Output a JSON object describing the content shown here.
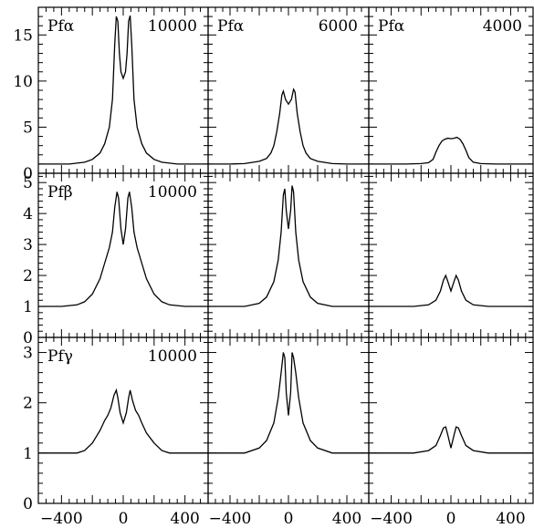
{
  "chart_data": {
    "type": "line",
    "rows": 3,
    "cols": 3,
    "xlim": [
      -550,
      550
    ],
    "xticks": [
      -400,
      0,
      400
    ],
    "xtick_labels": [
      "−400",
      "0",
      "400"
    ],
    "line_color": "#000000",
    "row_axes": [
      {
        "ylim": [
          0,
          18
        ],
        "yticks": [
          0,
          5,
          10,
          15
        ],
        "ytick_labels": [
          "0",
          "5",
          "10",
          "15"
        ],
        "minor_step": 1
      },
      {
        "ylim": [
          0,
          5.3
        ],
        "yticks": [
          0,
          1,
          2,
          3,
          4,
          5
        ],
        "ytick_labels": [
          "0",
          "1",
          "2",
          "3",
          "4",
          "5"
        ],
        "minor_step": 0.2
      },
      {
        "ylim": [
          0,
          3.3
        ],
        "yticks": [
          0,
          1,
          2,
          3
        ],
        "ytick_labels": [
          "0",
          "1",
          "2",
          "3"
        ],
        "minor_step": 0.2
      }
    ],
    "panels": [
      {
        "row": 0,
        "col": 0,
        "line": "Pfα",
        "value": "10000",
        "x": [
          -550,
          -450,
          -350,
          -300,
          -250,
          -200,
          -150,
          -120,
          -90,
          -70,
          -55,
          -45,
          -35,
          -25,
          -15,
          0,
          15,
          25,
          35,
          45,
          55,
          70,
          90,
          120,
          150,
          200,
          250,
          300,
          350,
          450,
          550
        ],
        "y": [
          1,
          1,
          1,
          1.1,
          1.2,
          1.5,
          2.2,
          3.2,
          5,
          8,
          14,
          17,
          16.5,
          13,
          11,
          10.3,
          11,
          13,
          16.5,
          17.1,
          14,
          8,
          5,
          3.2,
          2.2,
          1.5,
          1.2,
          1.1,
          1,
          1,
          1
        ]
      },
      {
        "row": 0,
        "col": 1,
        "line": "Pfα",
        "value": "6000",
        "x": [
          -550,
          -400,
          -300,
          -200,
          -150,
          -120,
          -100,
          -80,
          -60,
          -45,
          -35,
          -20,
          0,
          20,
          35,
          45,
          60,
          80,
          100,
          120,
          150,
          200,
          300,
          400,
          550
        ],
        "y": [
          1,
          1,
          1.05,
          1.3,
          1.6,
          2.2,
          3,
          4.5,
          6.5,
          8.5,
          8.9,
          8,
          7.5,
          8,
          9.1,
          8.8,
          6.5,
          4.5,
          3,
          2.2,
          1.6,
          1.3,
          1.05,
          1,
          1
        ]
      },
      {
        "row": 0,
        "col": 2,
        "line": "Pfα",
        "value": "4000",
        "x": [
          -550,
          -300,
          -200,
          -150,
          -120,
          -100,
          -80,
          -60,
          -40,
          -20,
          0,
          20,
          40,
          60,
          80,
          100,
          120,
          150,
          200,
          300,
          550
        ],
        "y": [
          1,
          1,
          1.05,
          1.15,
          1.5,
          2.3,
          3,
          3.5,
          3.7,
          3.8,
          3.75,
          3.8,
          3.9,
          3.7,
          3.2,
          2.5,
          1.7,
          1.2,
          1.05,
          1,
          1
        ]
      },
      {
        "row": 1,
        "col": 0,
        "line": "Pfβ",
        "value": "10000",
        "x": [
          -550,
          -400,
          -300,
          -250,
          -200,
          -150,
          -120,
          -90,
          -70,
          -55,
          -40,
          -30,
          -15,
          0,
          15,
          30,
          40,
          55,
          70,
          90,
          120,
          150,
          200,
          250,
          300,
          400,
          550
        ],
        "y": [
          1,
          1,
          1.05,
          1.15,
          1.4,
          1.9,
          2.4,
          2.9,
          3.4,
          4.2,
          4.7,
          4.5,
          3.5,
          3.0,
          3.5,
          4.5,
          4.7,
          4.2,
          3.4,
          2.9,
          2.4,
          1.9,
          1.4,
          1.15,
          1.05,
          1,
          1
        ]
      },
      {
        "row": 1,
        "col": 1,
        "line": "Pfβ",
        "value": "",
        "x": [
          -550,
          -300,
          -200,
          -150,
          -100,
          -70,
          -50,
          -35,
          -25,
          -15,
          0,
          15,
          25,
          35,
          50,
          70,
          100,
          150,
          200,
          300,
          550
        ],
        "y": [
          1,
          1,
          1.1,
          1.3,
          1.8,
          2.5,
          3.4,
          4.6,
          4.8,
          4.1,
          3.5,
          4.1,
          4.9,
          4.7,
          3.4,
          2.5,
          1.8,
          1.3,
          1.1,
          1,
          1
        ]
      },
      {
        "row": 1,
        "col": 2,
        "line": "Pfβ",
        "value": "",
        "x": [
          -550,
          -250,
          -150,
          -100,
          -70,
          -50,
          -35,
          -20,
          0,
          20,
          35,
          50,
          70,
          100,
          150,
          250,
          550
        ],
        "y": [
          1,
          1,
          1.05,
          1.2,
          1.5,
          1.85,
          2.0,
          1.8,
          1.5,
          1.8,
          2.0,
          1.85,
          1.5,
          1.2,
          1.05,
          1,
          1
        ]
      },
      {
        "row": 2,
        "col": 0,
        "line": "Pfγ",
        "value": "10000",
        "x": [
          -550,
          -300,
          -250,
          -200,
          -150,
          -120,
          -100,
          -80,
          -60,
          -45,
          -35,
          -20,
          0,
          20,
          35,
          45,
          60,
          80,
          100,
          120,
          150,
          200,
          250,
          300,
          550
        ],
        "y": [
          1,
          1,
          1.05,
          1.2,
          1.45,
          1.65,
          1.75,
          1.9,
          2.15,
          2.25,
          2.1,
          1.8,
          1.6,
          1.8,
          2.1,
          2.25,
          2.05,
          1.85,
          1.75,
          1.6,
          1.4,
          1.2,
          1.05,
          1,
          1
        ]
      },
      {
        "row": 2,
        "col": 1,
        "line": "Pfγ",
        "value": "",
        "x": [
          -550,
          -300,
          -200,
          -150,
          -100,
          -70,
          -50,
          -35,
          -25,
          -15,
          0,
          15,
          25,
          35,
          50,
          70,
          100,
          150,
          200,
          300,
          550
        ],
        "y": [
          1,
          1,
          1.1,
          1.25,
          1.6,
          2.1,
          2.6,
          3.0,
          2.9,
          2.2,
          1.75,
          2.2,
          3.0,
          2.9,
          2.6,
          2.1,
          1.6,
          1.25,
          1.1,
          1,
          1
        ]
      },
      {
        "row": 2,
        "col": 2,
        "line": "Pfγ",
        "value": "",
        "x": [
          -550,
          -250,
          -150,
          -100,
          -70,
          -50,
          -35,
          -20,
          0,
          20,
          35,
          50,
          70,
          100,
          150,
          250,
          550
        ],
        "y": [
          1,
          1,
          1.05,
          1.15,
          1.35,
          1.5,
          1.52,
          1.35,
          1.1,
          1.35,
          1.52,
          1.5,
          1.35,
          1.15,
          1.05,
          1,
          1
        ]
      }
    ]
  }
}
